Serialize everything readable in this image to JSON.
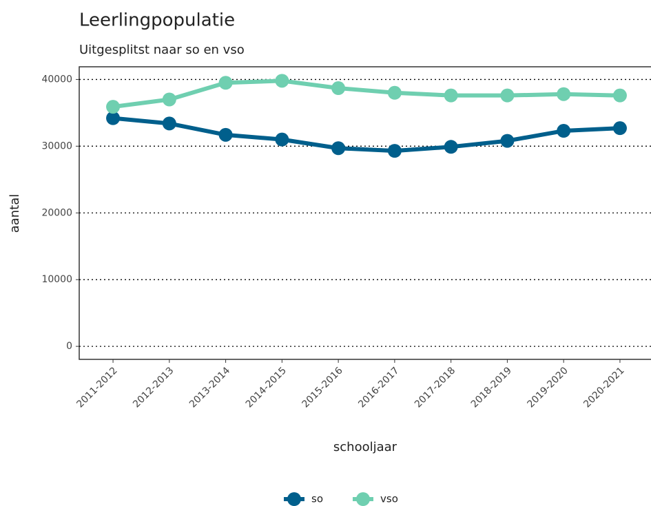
{
  "chart_data": {
    "type": "line",
    "title": "Leerlingpopulatie",
    "subtitle": "Uitgesplitst naar so en vso",
    "x_label": "schooljaar",
    "y_label": "aantal",
    "categories": [
      "2011-2012",
      "2012-2013",
      "2013-2014",
      "2014-2015",
      "2015-2016",
      "2016-2017",
      "2017-2018",
      "2018-2019",
      "2019-2020",
      "2020-2021"
    ],
    "series": [
      {
        "name": "so",
        "color": "#005f8c",
        "values": [
          34200,
          33400,
          31700,
          31000,
          29700,
          29300,
          29900,
          30800,
          32300,
          32700
        ]
      },
      {
        "name": "vso",
        "color": "#6fcfb0",
        "values": [
          35900,
          37000,
          39500,
          39800,
          38700,
          38000,
          37600,
          37600,
          37800,
          37600
        ]
      }
    ],
    "ylim": [
      -1950,
      41900
    ],
    "yticks": [
      0,
      10000,
      20000,
      30000,
      40000
    ],
    "grid": true,
    "legend": "bottom"
  }
}
